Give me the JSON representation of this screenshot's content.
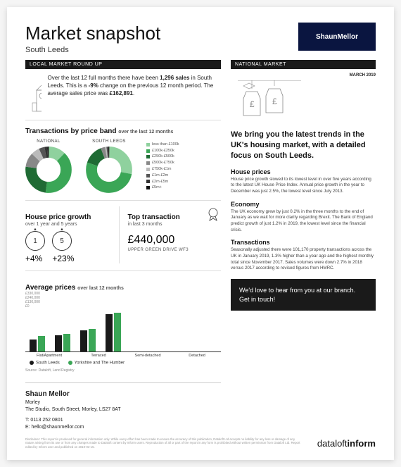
{
  "header": {
    "title": "Market snapshot",
    "subtitle": "South Leeds",
    "logo_text": "ShaunMellor"
  },
  "left": {
    "band": "LOCAL MARKET ROUND UP",
    "roundup_text": "Over the last 12 full months there have been 1,296 sales in South Leeds. This is a -9% change on the previous 12 month period. The average sales price was £162,891.",
    "priceband": {
      "title": "Transactions by price band",
      "sub": "over the last 12 months",
      "labels": {
        "national": "NATIONAL",
        "local": "SOUTH LEEDS"
      },
      "legend": [
        {
          "label": "less than £100k",
          "color": "#8fd19e"
        },
        {
          "label": "£100k-£250k",
          "color": "#3aa656"
        },
        {
          "label": "£250k-£500k",
          "color": "#1f6b34"
        },
        {
          "label": "£500k-£750k",
          "color": "#888888"
        },
        {
          "label": "£750k-£1m",
          "color": "#bbbbbb"
        },
        {
          "label": "£1m-£2m",
          "color": "#555555"
        },
        {
          "label": "£2m-£5m",
          "color": "#333333"
        },
        {
          "label": "£5m+",
          "color": "#111111"
        }
      ],
      "national_slices": [
        {
          "color": "#8fd19e",
          "pct": 12
        },
        {
          "color": "#3aa656",
          "pct": 40
        },
        {
          "color": "#1f6b34",
          "pct": 25
        },
        {
          "color": "#888888",
          "pct": 10
        },
        {
          "color": "#bbbbbb",
          "pct": 6
        },
        {
          "color": "#555555",
          "pct": 4
        },
        {
          "color": "#333333",
          "pct": 2
        },
        {
          "color": "#111111",
          "pct": 1
        }
      ],
      "local_slices": [
        {
          "color": "#8fd19e",
          "pct": 28
        },
        {
          "color": "#3aa656",
          "pct": 52
        },
        {
          "color": "#1f6b34",
          "pct": 14
        },
        {
          "color": "#888888",
          "pct": 3
        },
        {
          "color": "#bbbbbb",
          "pct": 1
        },
        {
          "color": "#555555",
          "pct": 1
        },
        {
          "color": "#333333",
          "pct": 0.5
        },
        {
          "color": "#111111",
          "pct": 0.5
        }
      ]
    },
    "growth": {
      "title": "House price growth",
      "sub": "over 1 year and 5 years",
      "y1_label": "1",
      "y5_label": "5",
      "y1_pct": "+4%",
      "y5_pct": "+23%"
    },
    "top": {
      "title": "Top transaction",
      "sub": "in last 3 months",
      "price": "£440,000",
      "address": "UPPER GREEN DRIVE WF3"
    },
    "avg": {
      "title": "Average prices",
      "sub": "over last 12 months",
      "yticks": [
        "£330,000",
        "£240,000",
        "£130,000",
        "£0"
      ],
      "categories": [
        "Flat/Apartment",
        "Terraced",
        "Semi-detached",
        "Detached"
      ],
      "series": [
        {
          "name": "South Leeds",
          "color": "#1a1a1a"
        },
        {
          "name": "Yorkshire and The Humber",
          "color": "#3aa656"
        }
      ],
      "values_local": [
        95000,
        125000,
        165000,
        290000
      ],
      "values_region": [
        120000,
        135000,
        175000,
        300000
      ],
      "ymax": 330000,
      "source": "Source: Dataloft, Land Registry"
    },
    "contact": {
      "name": "Shaun Mellor",
      "office": "Morley",
      "address": "The Studio, South Street, Morley, LS27 8AT",
      "phone": "T: 0113 252 0801",
      "email": "E: hello@shaunmellor.com"
    }
  },
  "right": {
    "band": "NATIONAL MARKET",
    "date": "MARCH 2019",
    "headline": "We bring you the latest trends in the UK's housing market, with a detailed focus on South Leeds.",
    "sections": [
      {
        "h": "House prices",
        "p": "House price growth slowed to its lowest level in over five years according to the latest UK House Price Index. Annual price growth in the year to December was just 2.5%, the lowest level since July 2013."
      },
      {
        "h": "Economy",
        "p": "The UK economy grew by just 0.2% in the three months to the end of January as we wait for more clarity regarding Brexit. The Bank of England predict growth of just 1.2% in 2019, the lowest level since the financial crisis."
      },
      {
        "h": "Transactions",
        "p": "Seasonally adjusted there were 101,170 property transactions across the UK in January 2019, 1.3% higher than a year ago and the highest monthly total since November 2017. Sales volumes were down 2.7% in 2018 versus 2017 according to revised figures from HMRC."
      }
    ],
    "cta": "We'd love to hear from you at our branch. Get in touch!"
  },
  "footer": {
    "disclaimer": "Disclaimer: This report is produced for general information only. While every effort has been made to ensure the accuracy of this publication, Dataloft Ltd accepts no liability for any loss or damage of any nature arising from its use or from any changes made to Dataloft content by Inform users. Reproduction of all or part of the report in any form is prohibited without written permission from Dataloft Ltd. Report edited by Inform user and published on 2019-03-15.",
    "brand_prefix": "dataloft",
    "brand_suffix": "inform"
  },
  "colors": {
    "green": "#3aa656",
    "dark": "#1a1a1a",
    "navy": "#0a1540"
  }
}
